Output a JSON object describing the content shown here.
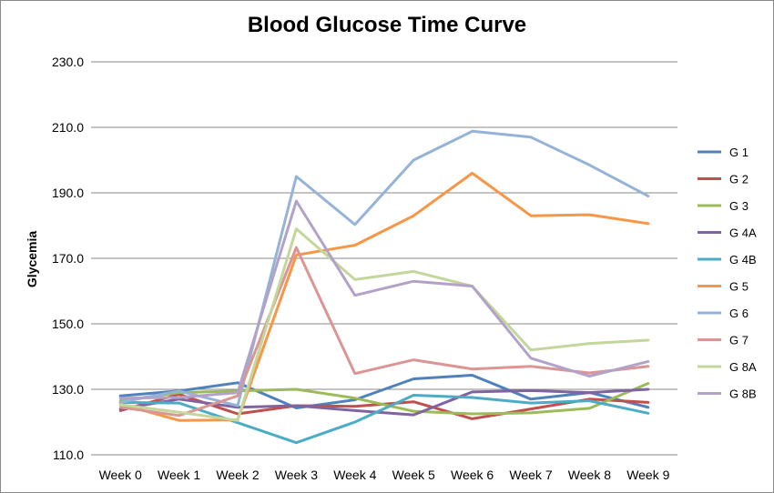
{
  "chart_data": {
    "type": "line",
    "title": "Blood Glucose Time Curve",
    "xlabel": "",
    "ylabel": "Glycemia",
    "ylim": [
      110,
      230
    ],
    "yticks": [
      "110.0",
      "130.0",
      "150.0",
      "170.0",
      "190.0",
      "210.0",
      "230.0"
    ],
    "grid": "horizontal",
    "legend": "right",
    "categories": [
      "Week 0",
      "Week 1",
      "Week 2",
      "Week 3",
      "Week 4",
      "Week 5",
      "Week 6",
      "Week 7",
      "Week 8",
      "Week 9"
    ],
    "series": [
      {
        "name": "G 1",
        "color": "#4F81BD",
        "values": [
          128,
          129.5,
          132,
          124.3,
          126.8,
          133.2,
          134.3,
          127,
          129,
          124.5
        ]
      },
      {
        "name": "G 2",
        "color": "#C0504D",
        "values": [
          123.5,
          128.5,
          122.5,
          125,
          124.8,
          126.2,
          121,
          124,
          127,
          126
        ]
      },
      {
        "name": "G 3",
        "color": "#9BBB59",
        "values": [
          126.5,
          129,
          129.5,
          130,
          127.3,
          123.3,
          122.5,
          122.8,
          124.2,
          131.8
        ]
      },
      {
        "name": "G 4A",
        "color": "#8064A2",
        "values": [
          124,
          127,
          124.5,
          125,
          123.5,
          122.2,
          129.2,
          129.6,
          129,
          130
        ]
      },
      {
        "name": "G 4B",
        "color": "#4BACC6",
        "values": [
          126,
          125.8,
          119.8,
          113.7,
          120,
          128.2,
          127.5,
          125.8,
          126.5,
          122.7
        ]
      },
      {
        "name": "G 5",
        "color": "#F79646",
        "values": [
          125.5,
          120.5,
          120.7,
          171,
          174,
          183,
          196,
          183,
          183.3,
          180.6
        ]
      },
      {
        "name": "G 6",
        "color": "#95B3D7",
        "values": [
          126,
          129.5,
          125,
          195,
          180.3,
          200,
          208.8,
          207,
          198.5,
          189
        ]
      },
      {
        "name": "G 7",
        "color": "#D99694",
        "values": [
          124.5,
          122,
          128,
          173.3,
          134.8,
          139,
          136.2,
          137,
          135,
          137
        ]
      },
      {
        "name": "G 8A",
        "color": "#C3D69B",
        "values": [
          125.3,
          123,
          120.5,
          179,
          163.5,
          166,
          161.5,
          142,
          144,
          145
        ]
      },
      {
        "name": "G 8B",
        "color": "#B3A2C7",
        "values": [
          127.3,
          127.5,
          129,
          187.5,
          158.7,
          163,
          161.5,
          139.5,
          134,
          138.5
        ]
      }
    ]
  }
}
